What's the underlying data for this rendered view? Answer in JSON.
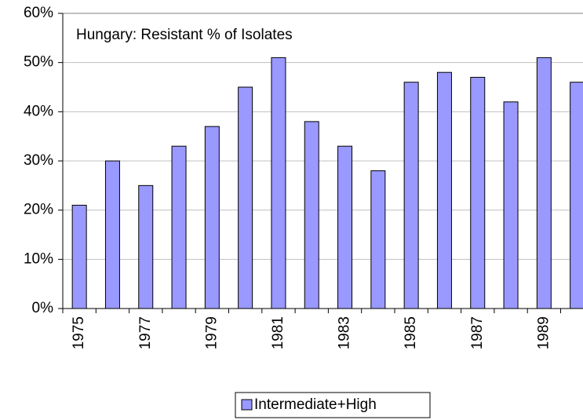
{
  "chart_data": {
    "type": "bar",
    "title": "Hungary: Resistant % of Isolates",
    "categories": [
      "1975",
      null,
      "1977",
      null,
      "1979",
      null,
      "1981",
      null,
      "1983",
      null,
      "1985",
      null,
      "1987",
      null,
      "1989",
      null
    ],
    "series": [
      {
        "name": "Intermediate+High",
        "color": "#9999ff",
        "values": [
          21,
          30,
          25,
          33,
          37,
          45,
          51,
          38,
          33,
          28,
          46,
          48,
          47,
          42,
          51,
          46
        ]
      }
    ],
    "ylim": [
      0,
      60
    ],
    "yticks": [
      {
        "value": 0,
        "label": "0%"
      },
      {
        "value": 10,
        "label": "10%"
      },
      {
        "value": 20,
        "label": "20%"
      },
      {
        "value": 30,
        "label": "30%"
      },
      {
        "value": 40,
        "label": "40%"
      },
      {
        "value": 50,
        "label": "50%"
      },
      {
        "value": 60,
        "label": "60%"
      }
    ],
    "grid": true,
    "legend": "bottom"
  }
}
